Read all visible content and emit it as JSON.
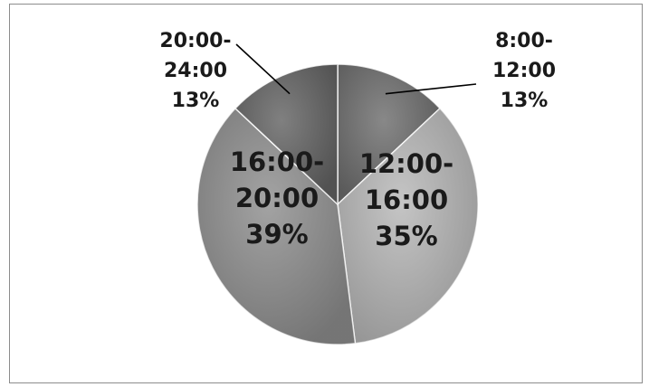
{
  "chart_data": {
    "type": "pie",
    "title": "",
    "legend": "none",
    "slices": [
      {
        "label": "8:00-12:00",
        "value": 13,
        "percent_label": "13%",
        "color": "#6e6e6e"
      },
      {
        "label": "12:00-16:00",
        "value": 35,
        "percent_label": "35%",
        "color": "#b8b8b8"
      },
      {
        "label": "16:00-20:00",
        "value": 39,
        "percent_label": "39%",
        "color": "#8f8f8f"
      },
      {
        "label": "20:00-24:00",
        "value": 13,
        "percent_label": "13%",
        "color": "#646464"
      }
    ]
  }
}
